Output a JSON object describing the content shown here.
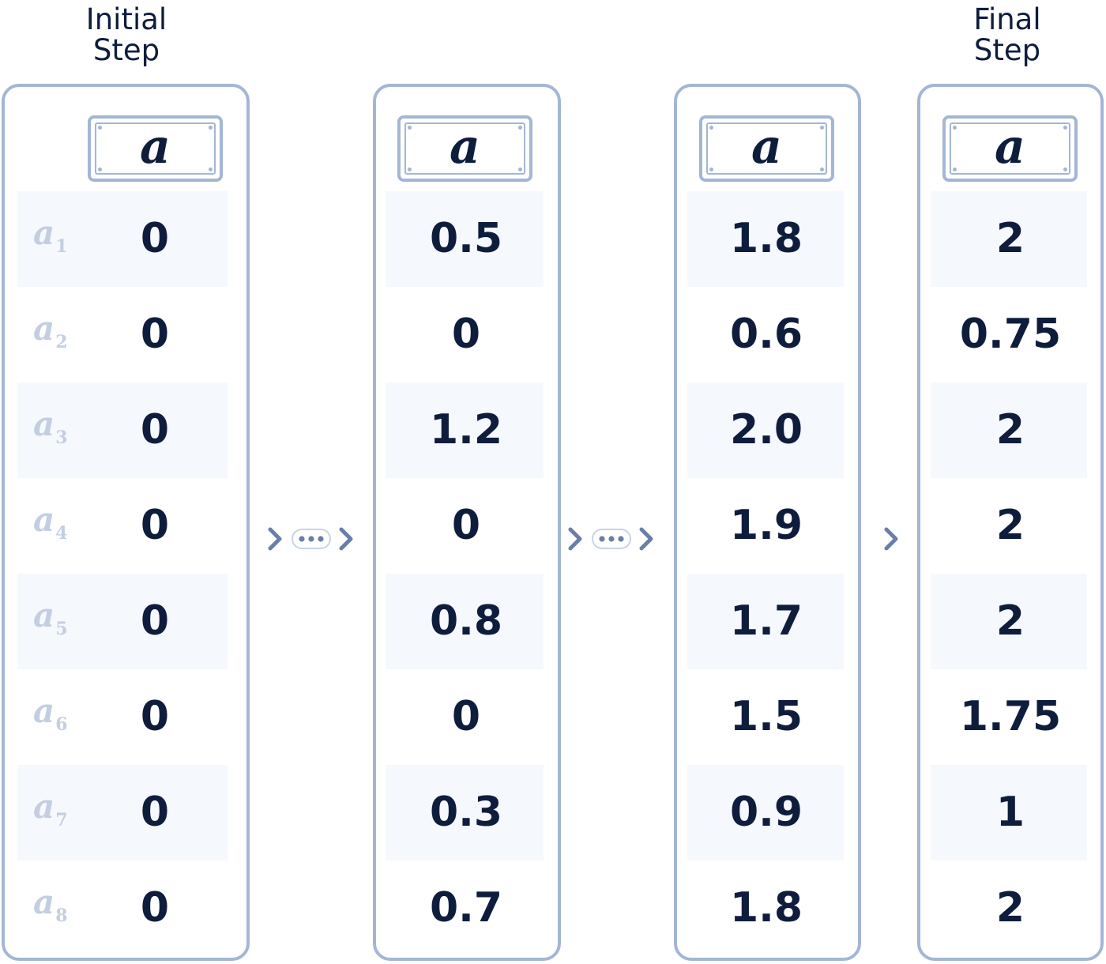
{
  "captions": {
    "initial": [
      "Initial",
      "Step"
    ],
    "final": [
      "Final",
      "Step"
    ]
  },
  "header_symbol": "a",
  "row_labels": [
    {
      "base": "a",
      "sub": "1"
    },
    {
      "base": "a",
      "sub": "2"
    },
    {
      "base": "a",
      "sub": "3"
    },
    {
      "base": "a",
      "sub": "4"
    },
    {
      "base": "a",
      "sub": "5"
    },
    {
      "base": "a",
      "sub": "6"
    },
    {
      "base": "a",
      "sub": "7"
    },
    {
      "base": "a",
      "sub": "8"
    }
  ],
  "columns": [
    {
      "values": [
        "0",
        "0",
        "0",
        "0",
        "0",
        "0",
        "0",
        "0"
      ]
    },
    {
      "values": [
        "0.5",
        "0",
        "1.2",
        "0",
        "0.8",
        "0",
        "0.3",
        "0.7"
      ]
    },
    {
      "values": [
        "1.8",
        "0.6",
        "2.0",
        "1.9",
        "1.7",
        "1.5",
        "0.9",
        "1.8"
      ]
    },
    {
      "values": [
        "2",
        "0.75",
        "2",
        "2",
        "2",
        "1.75",
        "1",
        "2"
      ]
    }
  ],
  "connectors": [
    {
      "type": "ellipsis-arrow"
    },
    {
      "type": "ellipsis-arrow"
    },
    {
      "type": "arrow"
    }
  ],
  "colors": {
    "border": "#a3b6d4",
    "text": "#0f1d3d",
    "label": "#c3cee0",
    "row_shade": "#f5f8fd",
    "arrow": "#6a7fa8"
  }
}
